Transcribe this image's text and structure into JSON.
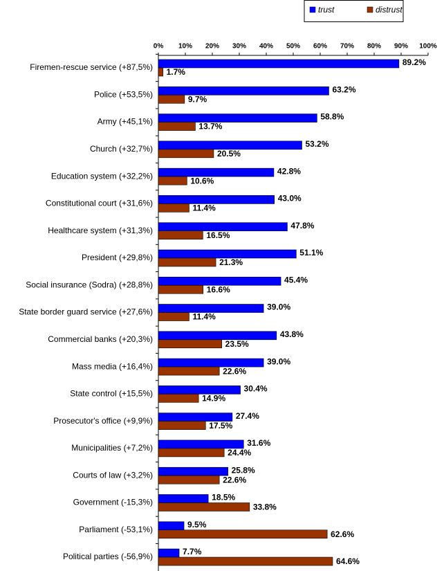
{
  "chart_data": {
    "type": "bar",
    "orientation": "horizontal",
    "categories": [
      "Firemen-rescue service (+87,5%)",
      "Police (+53,5%)",
      "Army (+45,1%)",
      "Church (+32,7%)",
      "Education system (+32,2%)",
      "Constitutional court (+31,6%)",
      "Healthcare system (+31,3%)",
      "President (+29,8%)",
      "Social insurance (Sodra) (+28,8%)",
      "State border guard service (+27,6%)",
      "Commercial banks (+20,3%)",
      "Mass media (+16,4%)",
      "State control (+15,5%)",
      "Prosecutor's office (+9,9%)",
      "Municipalities (+7,2%)",
      "Courts of law (+3,2%)",
      "Government (-15,3%)",
      "Parliament (-53,1%)",
      "Political parties (-56,9%)"
    ],
    "series": [
      {
        "name": "trust",
        "color": "#0000ff",
        "values": [
          89.2,
          63.2,
          58.8,
          53.2,
          42.8,
          43.0,
          47.8,
          51.1,
          45.4,
          39.0,
          43.8,
          39.0,
          30.4,
          27.4,
          31.6,
          25.8,
          18.5,
          9.5,
          7.7
        ],
        "value_labels": [
          "89.2%",
          "63.2%",
          "58.8%",
          "53.2%",
          "42.8%",
          "43.0%",
          "47.8%",
          "51.1%",
          "45.4%",
          "39.0%",
          "43.8%",
          "39.0%",
          "30.4%",
          "27.4%",
          "31.6%",
          "25.8%",
          "18.5%",
          "9.5%",
          "7.7%"
        ]
      },
      {
        "name": "distrust",
        "color": "#993300",
        "values": [
          1.7,
          9.7,
          13.7,
          20.5,
          10.6,
          11.4,
          16.5,
          21.3,
          16.6,
          11.4,
          23.5,
          22.6,
          14.9,
          17.5,
          24.4,
          22.6,
          33.8,
          62.6,
          64.6
        ],
        "value_labels": [
          "1.7%",
          "9.7%",
          "13.7%",
          "20.5%",
          "10.6%",
          "11.4%",
          "16.5%",
          "21.3%",
          "16.6%",
          "11.4%",
          "23.5%",
          "22.6%",
          "14.9%",
          "17.5%",
          "24.4%",
          "22.6%",
          "33.8%",
          "62.6%",
          "64.6%"
        ]
      }
    ],
    "xlim": [
      0,
      100
    ],
    "xticks": [
      {
        "value": 0,
        "label": "0%"
      },
      {
        "value": 10,
        "label": "10%"
      },
      {
        "value": 20,
        "label": "20%"
      },
      {
        "value": 30,
        "label": "30%"
      },
      {
        "value": 40,
        "label": "40%"
      },
      {
        "value": 50,
        "label": "50%"
      },
      {
        "value": 60,
        "label": "60%"
      },
      {
        "value": 70,
        "label": "70%"
      },
      {
        "value": 80,
        "label": "80%"
      },
      {
        "value": 90,
        "label": "90%"
      },
      {
        "value": 100,
        "label": "100%"
      }
    ],
    "legend": "top-right"
  }
}
